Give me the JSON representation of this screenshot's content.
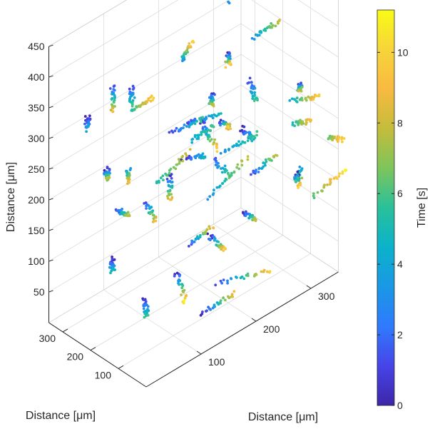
{
  "chart_data": {
    "type": "scatter",
    "projection": "3d",
    "title": "",
    "xlabel": "Distance [μm]",
    "ylabel": "Distance [μm]",
    "zlabel": "Distance [μm]",
    "xlim": [
      0,
      350
    ],
    "ylim": [
      0,
      350
    ],
    "zlim": [
      0,
      450
    ],
    "xticks": [
      100,
      200,
      300
    ],
    "yticks": [
      100,
      200,
      300
    ],
    "zticks": [
      50,
      100,
      150,
      200,
      250,
      300,
      350,
      400,
      450
    ],
    "grid": true,
    "color_variable": "Time [s]",
    "colorbar": {
      "label": "Time [s]",
      "range": [
        0,
        11.2
      ],
      "ticks": [
        0,
        2,
        4,
        6,
        8,
        10
      ],
      "colormap": [
        "#3e26a8",
        "#4744e8",
        "#2f7afd",
        "#1a98e5",
        "#0bb2cb",
        "#29c09a",
        "#7dc55c",
        "#c4bc3b",
        "#f8ba40",
        "#f7d43a",
        "#f9fb15"
      ]
    },
    "tracks": [
      {
        "x": 20,
        "y": 160,
        "z": 430,
        "dx": 0,
        "dy": 0,
        "dz": -40,
        "t0": 1,
        "t1": 9
      },
      {
        "x": 150,
        "y": 170,
        "z": 400,
        "dx": 20,
        "dy": 0,
        "dz": 20,
        "t0": 3,
        "t1": 10
      },
      {
        "x": 120,
        "y": 90,
        "z": 340,
        "dx": 60,
        "dy": 0,
        "dz": -20,
        "t0": 1,
        "t1": 5
      },
      {
        "x": 160,
        "y": 120,
        "z": 310,
        "dx": 30,
        "dy": 0,
        "dz": -60,
        "t0": 0,
        "t1": 10
      },
      {
        "x": 260,
        "y": 220,
        "z": 420,
        "dx": 80,
        "dy": 0,
        "dz": 20,
        "t0": 3,
        "t1": 8
      },
      {
        "x": 270,
        "y": 150,
        "z": 380,
        "dx": 50,
        "dy": 0,
        "dz": 0,
        "t0": 3,
        "t1": 8
      },
      {
        "x": 250,
        "y": 120,
        "z": 330,
        "dx": 10,
        "dy": 0,
        "dz": -40,
        "t0": 1,
        "t1": 6
      },
      {
        "x": 90,
        "y": 230,
        "z": 370,
        "dx": 0,
        "dy": 0,
        "dz": -30,
        "t0": 1,
        "t1": 6
      },
      {
        "x": 50,
        "y": 310,
        "z": 320,
        "dx": 0,
        "dy": 0,
        "dz": -20,
        "t0": 0,
        "t1": 4
      },
      {
        "x": 120,
        "y": 290,
        "z": 300,
        "dx": 40,
        "dy": 0,
        "dz": 0,
        "t0": 5,
        "t1": 10
      },
      {
        "x": 180,
        "y": 190,
        "z": 250,
        "dx": 40,
        "dy": 0,
        "dz": 0,
        "t0": 4,
        "t1": 6
      },
      {
        "x": 200,
        "y": 50,
        "z": 300,
        "dx": 20,
        "dy": 0,
        "dz": -30,
        "t0": 0,
        "t1": 5
      },
      {
        "x": 150,
        "y": 60,
        "z": 380,
        "dx": 0,
        "dy": 0,
        "dz": -20,
        "t0": 0,
        "t1": 8
      },
      {
        "x": 300,
        "y": 40,
        "z": 320,
        "dx": 0,
        "dy": 0,
        "dz": -10,
        "t0": 0,
        "t1": 8
      },
      {
        "x": 300,
        "y": 60,
        "z": 250,
        "dx": 30,
        "dy": 0,
        "dz": -10,
        "t0": 5,
        "t1": 9
      },
      {
        "x": 250,
        "y": 230,
        "z": 230,
        "dx": 20,
        "dy": 0,
        "dz": -20,
        "t0": 0,
        "t1": 10
      },
      {
        "x": 190,
        "y": 240,
        "z": 200,
        "dx": 40,
        "dy": 0,
        "dz": -20,
        "t0": 0,
        "t1": 5
      },
      {
        "x": 210,
        "y": 170,
        "z": 210,
        "dx": 30,
        "dy": 0,
        "dz": -50,
        "t0": 1,
        "t1": 7
      },
      {
        "x": 120,
        "y": 300,
        "z": 200,
        "dx": 0,
        "dy": 0,
        "dz": -20,
        "t0": 3,
        "t1": 9
      },
      {
        "x": 170,
        "y": 250,
        "z": 180,
        "dx": 0,
        "dy": 0,
        "dz": -40,
        "t0": 0,
        "t1": 9
      },
      {
        "x": 150,
        "y": 300,
        "z": 130,
        "dx": 20,
        "dy": 0,
        "dz": -40,
        "t0": 1,
        "t1": 9
      },
      {
        "x": 250,
        "y": 110,
        "z": 180,
        "dx": 40,
        "dy": 0,
        "dz": 10,
        "t0": 1,
        "t1": 8
      },
      {
        "x": 330,
        "y": 100,
        "z": 150,
        "dx": 0,
        "dy": 0,
        "dz": -30,
        "t0": 3,
        "t1": 10
      },
      {
        "x": 330,
        "y": 130,
        "z": 250,
        "dx": 50,
        "dy": 0,
        "dz": -20,
        "t0": 4,
        "t1": 10
      },
      {
        "x": 340,
        "y": 20,
        "z": 220,
        "dx": 30,
        "dy": 0,
        "dz": -20,
        "t0": 6,
        "t1": 10
      },
      {
        "x": 200,
        "y": 170,
        "z": 150,
        "dx": 70,
        "dy": 0,
        "dz": 30,
        "t0": 3,
        "t1": 8
      },
      {
        "x": 190,
        "y": 150,
        "z": 100,
        "dx": 30,
        "dy": 0,
        "dz": -40,
        "t0": 0,
        "t1": 10
      },
      {
        "x": 160,
        "y": 280,
        "z": 160,
        "dx": 60,
        "dy": 0,
        "dz": 20,
        "t0": 5,
        "t1": 8
      },
      {
        "x": 210,
        "y": 260,
        "z": 40,
        "dx": 40,
        "dy": 0,
        "dz": 10,
        "t0": 1,
        "t1": 9
      },
      {
        "x": 150,
        "y": 190,
        "z": 50,
        "dx": 20,
        "dy": 0,
        "dz": -60,
        "t0": 0,
        "t1": 11
      },
      {
        "x": 100,
        "y": 200,
        "z": 30,
        "dx": 0,
        "dy": 0,
        "dz": -30,
        "t0": 0,
        "t1": 6
      },
      {
        "x": 190,
        "y": 120,
        "z": 30,
        "dx": 100,
        "dy": 0,
        "dz": -30,
        "t0": 1,
        "t1": 10
      },
      {
        "x": 140,
        "y": 80,
        "z": 20,
        "dx": 60,
        "dy": 0,
        "dz": 0,
        "t0": 0,
        "t1": 9
      },
      {
        "x": 90,
        "y": 300,
        "z": 70,
        "dx": 0,
        "dy": 0,
        "dz": -20,
        "t0": 0,
        "t1": 5
      },
      {
        "x": 300,
        "y": 50,
        "z": 170,
        "dx": 0,
        "dy": 0,
        "dz": -10,
        "t0": 0,
        "t1": 6
      },
      {
        "x": 330,
        "y": 50,
        "z": 120,
        "dx": 60,
        "dy": 0,
        "dz": 10,
        "t0": 6,
        "t1": 11
      },
      {
        "x": 90,
        "y": 90,
        "z": 340,
        "dx": 60,
        "dy": 0,
        "dz": -10,
        "t0": 1,
        "t1": 6
      },
      {
        "x": 180,
        "y": 80,
        "z": 260,
        "dx": 60,
        "dy": 0,
        "dz": 0,
        "t0": 3,
        "t1": 6
      },
      {
        "x": 170,
        "y": 40,
        "z": 440,
        "dx": 0,
        "dy": 0,
        "dz": -20,
        "t0": 0,
        "t1": 10
      },
      {
        "x": 40,
        "y": 220,
        "z": 270,
        "dx": 0,
        "dy": 0,
        "dz": -20,
        "t0": 0,
        "t1": 8
      },
      {
        "x": 230,
        "y": 100,
        "z": 130,
        "dx": 20,
        "dy": 0,
        "dz": -20,
        "t0": 0,
        "t1": 8
      },
      {
        "x": 60,
        "y": 220,
        "z": 190,
        "dx": 20,
        "dy": 0,
        "dz": -20,
        "t0": 1,
        "t1": 8
      }
    ]
  }
}
